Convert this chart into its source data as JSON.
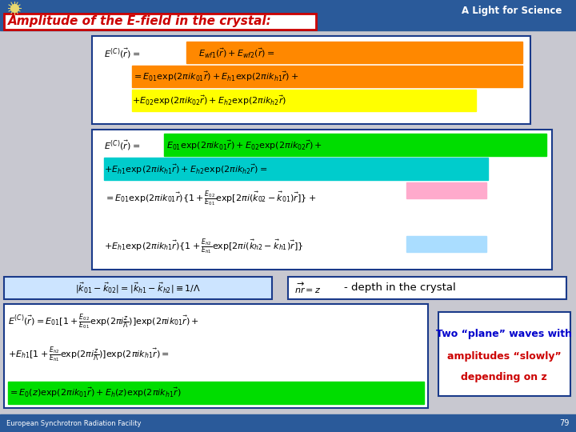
{
  "bg_color": "#c8c8d0",
  "header_bg": "#2a5a9a",
  "header_text": "Amplitude of the E-field in the crystal:",
  "header_title_bg": "#ffffff",
  "header_title_border": "#cc0000",
  "header_title_text_color": "#cc0000",
  "footer_bg": "#2a5a9a",
  "footer_text": "European Synchrotron Radiation Facility",
  "footer_page": "79",
  "logo_text": "A Light for Science",
  "box_border": "#1a3a8a",
  "box_bg": "#ffffff",
  "highlight_orange": "#ff8800",
  "highlight_yellow": "#ffff00",
  "highlight_green": "#00dd00",
  "highlight_cyan": "#00cccc",
  "highlight_pink": "#ffaacc",
  "highlight_blue_light": "#aaddff",
  "cond_box_bg": "#cce4ff",
  "cond_box_border": "#1a3a8a",
  "depth_box_bg": "#ffffff",
  "depth_box_border": "#1a3a8a",
  "wave_box_bg": "#ffffff",
  "wave_box_border": "#1a3a8a",
  "text_blue": "#0000cc",
  "text_red": "#cc0000",
  "text_black": "#000000",
  "eq1_line1": "$E^{(C)}(\\vec{r}) = E_{wf1}(\\vec{r})+E_{wf2}(\\vec{r}) =$",
  "eq1_line2": "$= E_{01} \\exp(2\\pi i k_{01}\\vec{r})+E_{h1} \\exp(2\\pi ik_{h1}\\vec{r})+$",
  "eq1_line3": "$+ E_{02} \\exp(2\\pi i k_{02}\\vec{r})+E_{h2} \\exp(2\\pi ik_{h2}\\vec{r})$",
  "eq2_line1": "$E^{(C)}(\\vec{r})= E_{01} \\exp(2\\pi ik_{01}\\vec{r}) + E_{02} \\exp(2\\pi ik_{02}\\vec{r}) +$",
  "eq2_line2": "$+ E_{h1} \\exp(2\\pi ik_{h1}\\vec{r}) + E_{h2} \\exp(2\\pi ik_{h2}\\vec{r}) =$",
  "eq2_line3": "$= E_{01} \\exp(2\\pi ik_{01}\\vec{r})\\{1 + \\frac{E_{02}}{E_{01}} \\exp[2\\pi i(k_{02} - k_{01})\\vec{r}]\\} +$",
  "eq2_line4": "$+ E_{h1} \\exp(2\\pi ik_{h1}\\vec{r})\\{1 + \\frac{E_{h2}}{E_{h1}} \\exp[2\\pi i(k_{h2} - k_{h1})\\vec{r}]\\}$",
  "eq3_cond": "$|\\vec{k}_{01} - \\vec{k}_{02}| =|\\vec{k}_{h1} - \\vec{k}_{h2}| \\equiv 1/\\Lambda$",
  "eq3_depth": "$\\overrightarrow{nr} = z$",
  "eq4_line1": "$E^{(C)}(\\vec{r})= E_{01}[1 + \\frac{E_{02}}{E_{01}}\\exp(2\\pi i\\frac{z}{\\Lambda})]\\exp(2\\pi ik_{01}\\vec{r}) +$",
  "eq4_line2": "$+ E_{h1}[1 + \\frac{E_{h2}}{E_{h1}}\\exp(2\\pi i\\frac{z}{\\Lambda})]\\exp(2\\pi ik_{h1}\\vec{r}) =$",
  "eq4_line3": "$= E_0(z)\\exp(2\\pi ik_{01}\\vec{r}) + E_h(z)\\exp(2\\pi ik_{h1}\\vec{r})$",
  "wave_line1": "Two “plane” waves with",
  "wave_line2": "amplitudes “slowly”",
  "wave_line3": "depending on z"
}
